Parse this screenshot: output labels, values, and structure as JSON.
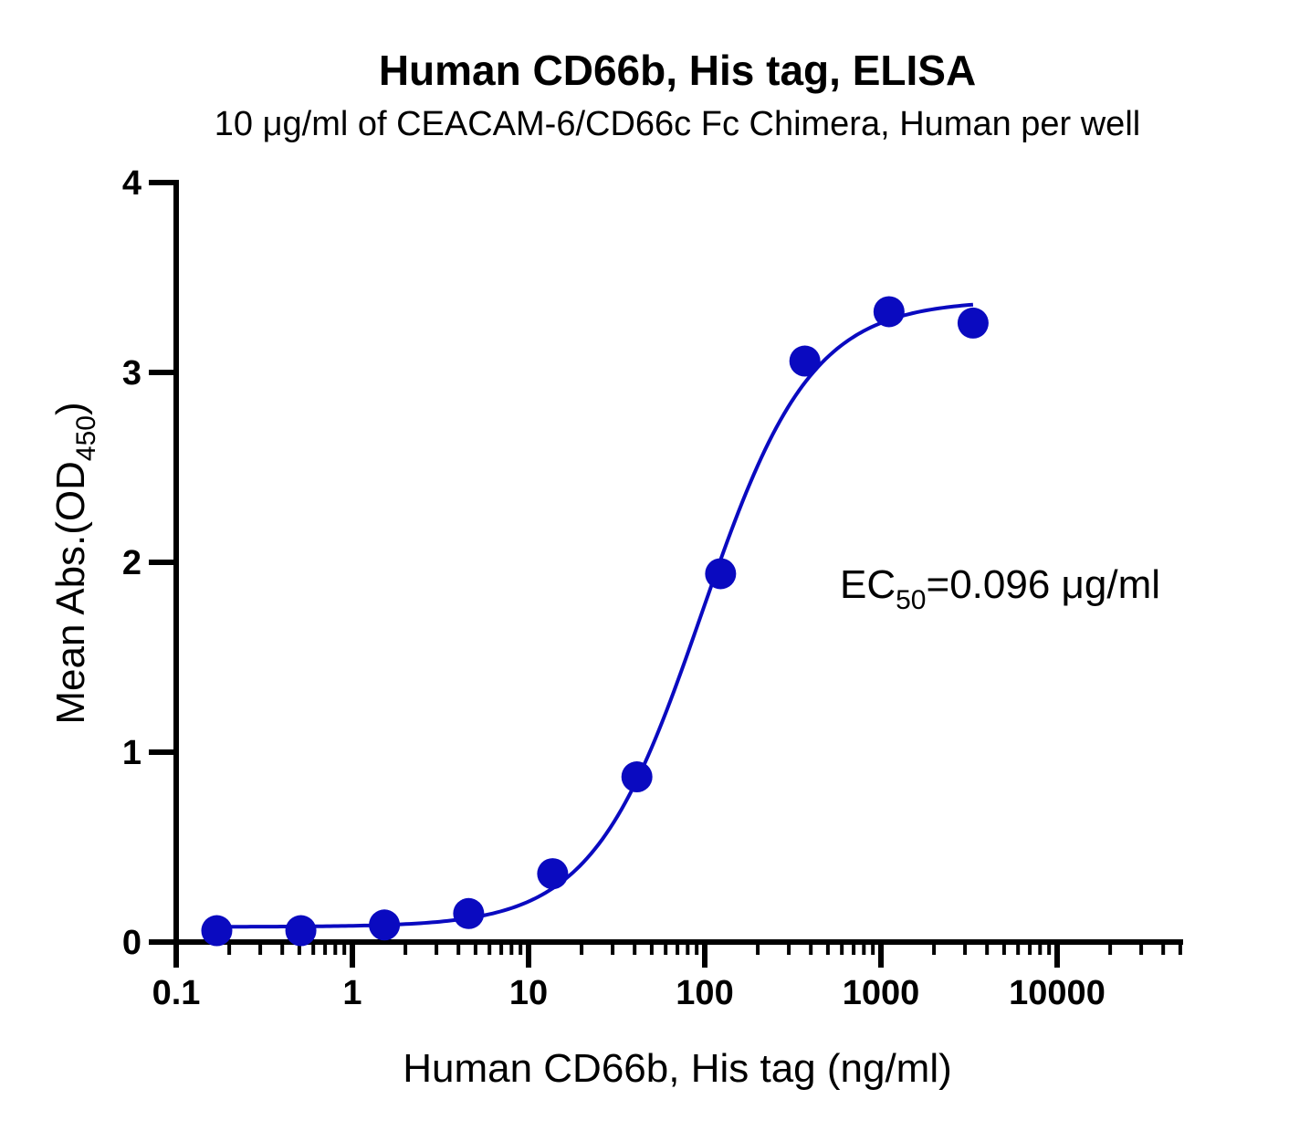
{
  "chart_data": {
    "type": "scatter",
    "title": "Human CD66b, His tag, ELISA",
    "subtitle": "10 μg/ml of CEACAM-6/CD66c Fc Chimera, Human per well",
    "xlabel": "Human CD66b, His tag (ng/ml)",
    "ylabel_main": "Mean Abs.(OD",
    "ylabel_sub": "450",
    "ylabel_close": ")",
    "x_scale": "log",
    "xlim": [
      0.1,
      50000
    ],
    "ylim": [
      0,
      4
    ],
    "x_ticks": [
      "0.1",
      "1",
      "10",
      "100",
      "1000",
      "10000"
    ],
    "y_ticks": [
      "0",
      "1",
      "2",
      "3",
      "4"
    ],
    "series": [
      {
        "color": "#0a0ac0",
        "points": [
          {
            "x": 0.17,
            "y": 0.06
          },
          {
            "x": 0.51,
            "y": 0.06
          },
          {
            "x": 1.52,
            "y": 0.09
          },
          {
            "x": 4.57,
            "y": 0.15
          },
          {
            "x": 13.7,
            "y": 0.36
          },
          {
            "x": 41.2,
            "y": 0.87
          },
          {
            "x": 123,
            "y": 1.94
          },
          {
            "x": 370,
            "y": 3.06
          },
          {
            "x": 1111,
            "y": 3.32
          },
          {
            "x": 3333,
            "y": 3.26
          }
        ],
        "fit": {
          "model": "4PL",
          "bottom": 0.08,
          "top": 3.38,
          "ec50": 96,
          "hill": 1.4,
          "x_range": [
            0.17,
            3333
          ]
        }
      }
    ],
    "annotation": {
      "main": "EC",
      "sub": "50",
      "rest": "=0.096 μg/ml"
    },
    "grid": false,
    "legend": "none"
  }
}
